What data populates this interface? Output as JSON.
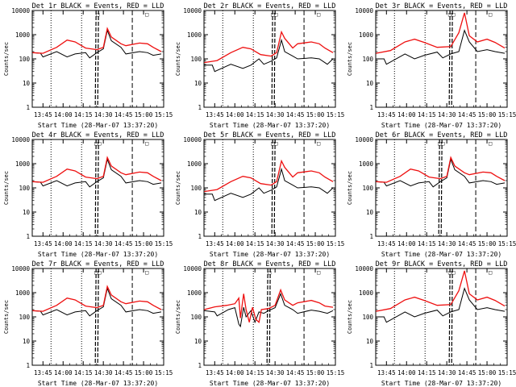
{
  "figure": {
    "background": "#ffffff",
    "ink": "#000000",
    "red": "#ee1010"
  },
  "chart_data": [
    {
      "type": "line",
      "title": "Det 1r BLACK = Events, RED = LLD",
      "xlabel": "Start Time (28-Mar-07 13:37:20)",
      "ylabel": "Counts/sec",
      "yscale": "log",
      "ylim": [
        1,
        10000
      ],
      "x_ticks": [
        "13:45",
        "14:00",
        "14:15",
        "14:30",
        "14:45",
        "15:00",
        "15:15"
      ],
      "y_ticks": [
        "1",
        "10",
        "100",
        "1000",
        "10000"
      ],
      "profile": "a",
      "marks": [
        "□",
        "□"
      ]
    },
    {
      "type": "line",
      "title": "Det 2r BLACK = Events, RED = LLD",
      "xlabel": "Start Time (28-Mar-07 13:37:20)",
      "ylabel": "Counts/sec",
      "yscale": "log",
      "ylim": [
        1,
        10000
      ],
      "x_ticks": [
        "13:45",
        "14:00",
        "14:15",
        "14:30",
        "14:45",
        "15:00",
        "15:15"
      ],
      "y_ticks": [
        "1",
        "10",
        "100",
        "1000",
        "10000"
      ],
      "profile": "b",
      "marks": [
        "□□",
        "□"
      ]
    },
    {
      "type": "line",
      "title": "Det 3r BLACK = Events, RED = LLD",
      "xlabel": "Start Time (28-Mar-07 13:37:20)",
      "ylabel": "Counts/sec",
      "yscale": "log",
      "ylim": [
        1,
        10000
      ],
      "x_ticks": [
        "13:45",
        "14:00",
        "14:15",
        "14:30",
        "14:45",
        "15:00",
        "15:15"
      ],
      "y_ticks": [
        "1",
        "10",
        "100",
        "1000",
        "10000"
      ],
      "profile": "c",
      "marks": [
        "□□",
        "□"
      ]
    },
    {
      "type": "line",
      "title": "Det 4r BLACK = Events, RED = LLD",
      "xlabel": "Start Time (28-Mar-07 13:37:20)",
      "ylabel": "Counts/sec",
      "yscale": "log",
      "ylim": [
        1,
        10000
      ],
      "x_ticks": [
        "13:45",
        "14:00",
        "14:15",
        "14:30",
        "14:45",
        "15:00",
        "15:15"
      ],
      "y_ticks": [
        "1",
        "10",
        "100",
        "1000",
        "10000"
      ],
      "profile": "a",
      "marks": [
        "□□",
        "□"
      ]
    },
    {
      "type": "line",
      "title": "Det 5r BLACK = Events, RED = LLD",
      "xlabel": "Start Time (28-Mar-07 13:37:20)",
      "ylabel": "Counts/sec",
      "yscale": "log",
      "ylim": [
        1,
        10000
      ],
      "x_ticks": [
        "13:45",
        "14:00",
        "14:15",
        "14:30",
        "14:45",
        "15:00",
        "15:15"
      ],
      "y_ticks": [
        "1",
        "10",
        "100",
        "1000",
        "10000"
      ],
      "profile": "b",
      "marks": [
        "□□",
        "□"
      ]
    },
    {
      "type": "line",
      "title": "Det 6r BLACK = Events, RED = LLD",
      "xlabel": "Start Time (28-Mar-07 13:37:20)",
      "ylabel": "Counts/sec",
      "yscale": "log",
      "ylim": [
        1,
        10000
      ],
      "x_ticks": [
        "13:45",
        "14:00",
        "14:15",
        "14:30",
        "14:45",
        "15:00",
        "15:15"
      ],
      "y_ticks": [
        "1",
        "10",
        "100",
        "1000",
        "10000"
      ],
      "profile": "a",
      "marks": [
        "□□",
        "□"
      ]
    },
    {
      "type": "line",
      "title": "Det 7r BLACK = Events, RED = LLD",
      "xlabel": "Start Time (28-Mar-07 13:37:20)",
      "ylabel": "Counts/sec",
      "yscale": "log",
      "ylim": [
        1,
        10000
      ],
      "x_ticks": [
        "13:45",
        "14:00",
        "14:15",
        "14:30",
        "14:45",
        "15:00",
        "15:15"
      ],
      "y_ticks": [
        "1",
        "10",
        "100",
        "1000",
        "10000"
      ],
      "profile": "a",
      "marks": [
        "□□",
        "□"
      ]
    },
    {
      "type": "line",
      "title": "Det 8r BLACK = Events, RED = LLD",
      "xlabel": "Start Time (28-Mar-07 13:37:20)",
      "ylabel": "Counts/sec",
      "yscale": "log",
      "ylim": [
        1,
        10000
      ],
      "x_ticks": [
        "13:45",
        "14:00",
        "14:15",
        "14:30",
        "14:45",
        "15:00",
        "15:15"
      ],
      "y_ticks": [
        "1",
        "10",
        "100",
        "1000",
        "10000"
      ],
      "profile": "d",
      "marks": [
        "□",
        "□"
      ]
    },
    {
      "type": "line",
      "title": "Det 9r BLACK = Events, RED = LLD",
      "xlabel": "Start Time (28-Mar-07 13:37:20)",
      "ylabel": "Counts/sec",
      "yscale": "log",
      "ylim": [
        1,
        10000
      ],
      "x_ticks": [
        "13:45",
        "14:00",
        "14:15",
        "14:30",
        "14:45",
        "15:00",
        "15:15"
      ],
      "y_ticks": [
        "1",
        "10",
        "100",
        "1000",
        "10000"
      ],
      "profile": "c",
      "marks": [
        "□□",
        "□"
      ]
    }
  ],
  "profiles": {
    "a": {
      "red": [
        [
          13.62,
          180
        ],
        [
          13.75,
          170
        ],
        [
          13.92,
          300
        ],
        [
          14.05,
          600
        ],
        [
          14.15,
          500
        ],
        [
          14.28,
          280
        ],
        [
          14.42,
          240
        ],
        [
          14.5,
          300
        ],
        [
          14.55,
          1800
        ],
        [
          14.6,
          800
        ],
        [
          14.72,
          420
        ],
        [
          14.78,
          350
        ],
        [
          14.95,
          450
        ],
        [
          15.05,
          420
        ],
        [
          15.12,
          300
        ],
        [
          15.22,
          200
        ]
      ],
      "black": [
        [
          13.62,
          180
        ],
        [
          13.72,
          170
        ],
        [
          13.75,
          120
        ],
        [
          13.92,
          200
        ],
        [
          14.05,
          120
        ],
        [
          14.15,
          160
        ],
        [
          14.28,
          180
        ],
        [
          14.33,
          110
        ],
        [
          14.42,
          180
        ],
        [
          14.5,
          260
        ],
        [
          14.55,
          1500
        ],
        [
          14.6,
          560
        ],
        [
          14.72,
          300
        ],
        [
          14.78,
          160
        ],
        [
          14.95,
          200
        ],
        [
          15.05,
          180
        ],
        [
          15.12,
          140
        ],
        [
          15.22,
          160
        ]
      ],
      "dotted": [
        13.85,
        14.23
      ],
      "dashed_thick": [
        14.42
      ],
      "dashed": [
        14.86
      ]
    },
    "b": {
      "red": [
        [
          13.62,
          70
        ],
        [
          13.78,
          85
        ],
        [
          13.95,
          180
        ],
        [
          14.1,
          300
        ],
        [
          14.2,
          260
        ],
        [
          14.32,
          150
        ],
        [
          14.45,
          130
        ],
        [
          14.52,
          180
        ],
        [
          14.58,
          1300
        ],
        [
          14.62,
          700
        ],
        [
          14.72,
          280
        ],
        [
          14.78,
          420
        ],
        [
          14.95,
          500
        ],
        [
          15.05,
          420
        ],
        [
          15.12,
          280
        ],
        [
          15.22,
          180
        ]
      ],
      "black": [
        [
          13.62,
          55
        ],
        [
          13.72,
          55
        ],
        [
          13.75,
          30
        ],
        [
          13.95,
          60
        ],
        [
          14.1,
          40
        ],
        [
          14.2,
          55
        ],
        [
          14.3,
          100
        ],
        [
          14.36,
          60
        ],
        [
          14.45,
          80
        ],
        [
          14.52,
          110
        ],
        [
          14.58,
          600
        ],
        [
          14.62,
          200
        ],
        [
          14.72,
          130
        ],
        [
          14.78,
          100
        ],
        [
          14.95,
          110
        ],
        [
          15.05,
          100
        ],
        [
          15.15,
          60
        ],
        [
          15.22,
          100
        ]
      ],
      "dotted": [
        13.85,
        14.23
      ],
      "dashed_thick": [
        14.48
      ],
      "dashed": [
        14.86
      ]
    },
    "c": {
      "red": [
        [
          13.62,
          170
        ],
        [
          13.8,
          220
        ],
        [
          13.98,
          500
        ],
        [
          14.1,
          650
        ],
        [
          14.22,
          480
        ],
        [
          14.38,
          300
        ],
        [
          14.55,
          320
        ],
        [
          14.65,
          1200
        ],
        [
          14.72,
          8000
        ],
        [
          14.78,
          900
        ],
        [
          14.88,
          500
        ],
        [
          15.0,
          650
        ],
        [
          15.1,
          480
        ],
        [
          15.22,
          280
        ]
      ],
      "black": [
        [
          13.62,
          100
        ],
        [
          13.72,
          100
        ],
        [
          13.75,
          60
        ],
        [
          13.98,
          160
        ],
        [
          14.1,
          100
        ],
        [
          14.22,
          140
        ],
        [
          14.38,
          190
        ],
        [
          14.45,
          110
        ],
        [
          14.55,
          160
        ],
        [
          14.65,
          200
        ],
        [
          14.72,
          1500
        ],
        [
          14.78,
          500
        ],
        [
          14.88,
          200
        ],
        [
          15.0,
          240
        ],
        [
          15.1,
          200
        ],
        [
          15.22,
          170
        ]
      ],
      "dotted": [
        13.85,
        14.23
      ],
      "dashed_thick": [
        14.55
      ],
      "dashed": [
        14.86
      ]
    },
    "d": {
      "red": [
        [
          13.62,
          200
        ],
        [
          13.75,
          260
        ],
        [
          13.9,
          300
        ],
        [
          14.0,
          350
        ],
        [
          14.05,
          600
        ],
        [
          14.07,
          90
        ],
        [
          14.11,
          900
        ],
        [
          14.14,
          200
        ],
        [
          14.18,
          60
        ],
        [
          14.22,
          250
        ],
        [
          14.26,
          80
        ],
        [
          14.3,
          60
        ],
        [
          14.33,
          200
        ],
        [
          14.42,
          220
        ],
        [
          14.5,
          300
        ],
        [
          14.57,
          1300
        ],
        [
          14.62,
          500
        ],
        [
          14.72,
          300
        ],
        [
          14.78,
          380
        ],
        [
          14.95,
          480
        ],
        [
          15.05,
          380
        ],
        [
          15.12,
          280
        ],
        [
          15.22,
          250
        ]
      ],
      "black": [
        [
          13.62,
          180
        ],
        [
          13.75,
          160
        ],
        [
          13.78,
          110
        ],
        [
          13.92,
          200
        ],
        [
          14.0,
          240
        ],
        [
          14.05,
          50
        ],
        [
          14.07,
          40
        ],
        [
          14.11,
          250
        ],
        [
          14.14,
          100
        ],
        [
          14.2,
          180
        ],
        [
          14.25,
          60
        ],
        [
          14.3,
          160
        ],
        [
          14.36,
          140
        ],
        [
          14.42,
          180
        ],
        [
          14.5,
          240
        ],
        [
          14.57,
          900
        ],
        [
          14.62,
          300
        ],
        [
          14.72,
          200
        ],
        [
          14.78,
          140
        ],
        [
          14.95,
          190
        ],
        [
          15.05,
          170
        ],
        [
          15.15,
          140
        ],
        [
          15.22,
          180
        ]
      ],
      "dotted": [
        13.85,
        14.23
      ],
      "dashed_thick": [
        14.42
      ],
      "dashed": [
        14.86
      ]
    }
  }
}
